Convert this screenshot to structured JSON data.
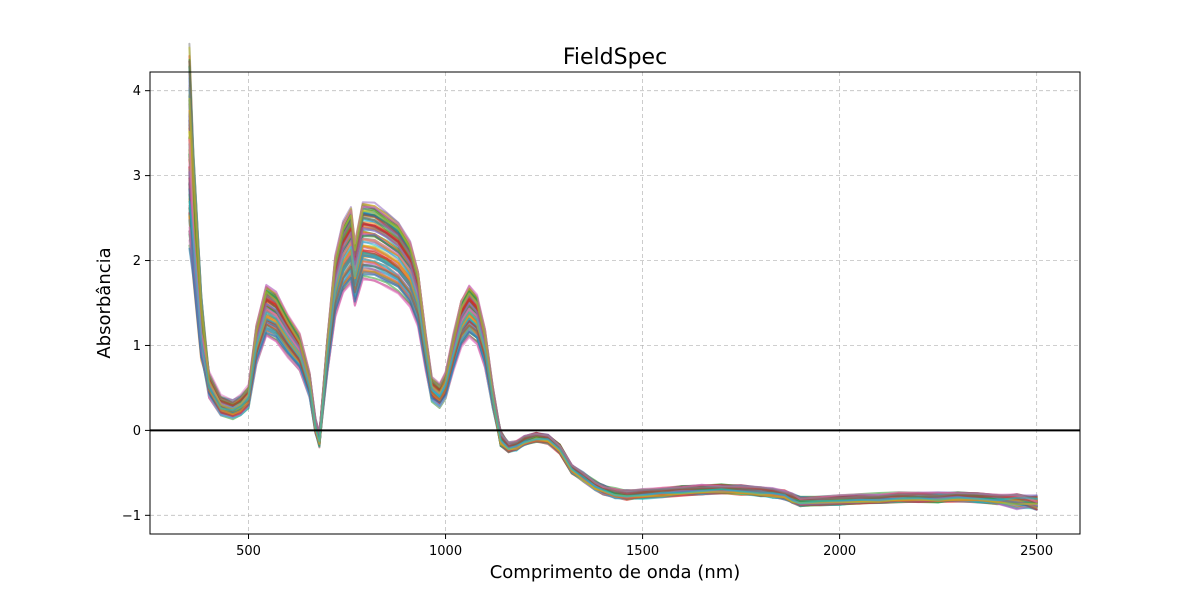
{
  "chart_data": {
    "type": "line",
    "title": "FieldSpec",
    "xlabel": "Comprimento de onda (nm)",
    "ylabel": "Absorbância",
    "xlim": [
      250,
      2610
    ],
    "ylim": [
      -1.22,
      4.22
    ],
    "xticks": [
      500,
      1000,
      1500,
      2000,
      2500
    ],
    "yticks": [
      -1,
      0,
      1,
      2,
      3,
      4
    ],
    "xtick_labels": [
      "500",
      "1000",
      "1500",
      "2000",
      "2500"
    ],
    "ytick_labels": [
      "−1",
      "0",
      "1",
      "2",
      "3",
      "4"
    ],
    "grid": true,
    "horizontal_line_y": 0,
    "series_count": 100,
    "representative_spectrum": {
      "x": [
        350,
        360,
        380,
        400,
        430,
        460,
        480,
        500,
        520,
        545,
        570,
        600,
        630,
        655,
        670,
        680,
        700,
        720,
        740,
        760,
        770,
        790,
        820,
        850,
        880,
        910,
        930,
        950,
        965,
        985,
        1000,
        1020,
        1040,
        1060,
        1080,
        1100,
        1120,
        1140,
        1160,
        1180,
        1200,
        1230,
        1260,
        1290,
        1320,
        1350,
        1380,
        1400,
        1430,
        1460,
        1500,
        1550,
        1600,
        1650,
        1700,
        1750,
        1800,
        1830,
        1860,
        1880,
        1900,
        1950,
        2000,
        2050,
        2100,
        2150,
        2200,
        2250,
        2300,
        2350,
        2400,
        2450,
        2500
      ],
      "y": [
        3.3,
        2.5,
        1.2,
        0.55,
        0.3,
        0.25,
        0.3,
        0.4,
        1.05,
        1.45,
        1.38,
        1.15,
        0.95,
        0.55,
        0.05,
        -0.1,
        0.9,
        1.75,
        2.1,
        2.25,
        1.9,
        2.3,
        2.28,
        2.2,
        2.1,
        1.9,
        1.6,
        0.95,
        0.5,
        0.42,
        0.55,
        0.95,
        1.3,
        1.45,
        1.35,
        1.0,
        0.4,
        -0.1,
        -0.2,
        -0.18,
        -0.12,
        -0.08,
        -0.1,
        -0.22,
        -0.45,
        -0.55,
        -0.65,
        -0.7,
        -0.74,
        -0.76,
        -0.75,
        -0.73,
        -0.71,
        -0.7,
        -0.69,
        -0.7,
        -0.72,
        -0.74,
        -0.76,
        -0.8,
        -0.84,
        -0.83,
        -0.82,
        -0.81,
        -0.8,
        -0.79,
        -0.79,
        -0.79,
        -0.78,
        -0.79,
        -0.81,
        -0.83,
        -0.85
      ]
    },
    "colors": [
      "#1f77b4",
      "#ff7f0e",
      "#2ca02c",
      "#d62728",
      "#9467bd",
      "#8c564b",
      "#e377c2",
      "#7f7f7f",
      "#bcbd22",
      "#17becf"
    ]
  }
}
